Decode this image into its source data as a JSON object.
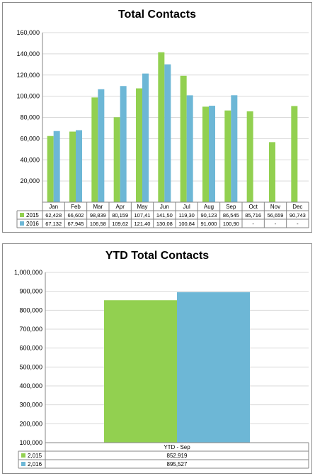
{
  "colors": {
    "s2015": "#92d050",
    "s2016": "#6db7d6",
    "grid": "#d9d9d9",
    "axis": "#868686"
  },
  "chart_data": [
    {
      "type": "bar",
      "title": "Total Contacts",
      "categories": [
        "Jan",
        "Feb",
        "Mar",
        "Apr",
        "May",
        "Jun",
        "Jul",
        "Aug",
        "Sep",
        "Oct",
        "Nov",
        "Dec"
      ],
      "series": [
        {
          "name": "2015",
          "values": [
            62428,
            66602,
            98839,
            80159,
            107410,
            141500,
            119300,
            90123,
            86545,
            85716,
            56659,
            90743
          ],
          "table_labels": [
            "62,428",
            "66,602",
            "98,839",
            "80,159",
            "107,41",
            "141,50",
            "119,30",
            "90,123",
            "86,545",
            "85,716",
            "56,659",
            "90,743"
          ]
        },
        {
          "name": "2016",
          "values": [
            67132,
            67945,
            106580,
            109620,
            121400,
            130080,
            100840,
            91000,
            100900,
            null,
            null,
            null
          ],
          "table_labels": [
            "67,132",
            "67,945",
            "106,58",
            "109,62",
            "121,40",
            "130,08",
            "100,84",
            "91,000",
            "100,90",
            "-",
            "-",
            "-"
          ]
        }
      ],
      "ylim": [
        0,
        160000
      ],
      "yticks": [
        "",
        "20,000",
        "40,000",
        "60,000",
        "80,000",
        "100,000",
        "120,000",
        "140,000",
        "160,000"
      ],
      "grid": true,
      "legend": "data-table"
    },
    {
      "type": "bar",
      "title": "YTD Total Contacts",
      "categories": [
        "YTD - Sep"
      ],
      "series": [
        {
          "name": "2,015",
          "values": [
            852919
          ],
          "table_labels": [
            "852,919"
          ]
        },
        {
          "name": "2,016",
          "values": [
            895527
          ],
          "table_labels": [
            "895,527"
          ]
        }
      ],
      "ylim": [
        100000,
        1000000
      ],
      "yticks": [
        "100,000",
        "200,000",
        "300,000",
        "400,000",
        "500,000",
        "600,000",
        "700,000",
        "800,000",
        "900,000",
        "1,000,000"
      ],
      "grid": true,
      "legend": "data-table"
    }
  ]
}
